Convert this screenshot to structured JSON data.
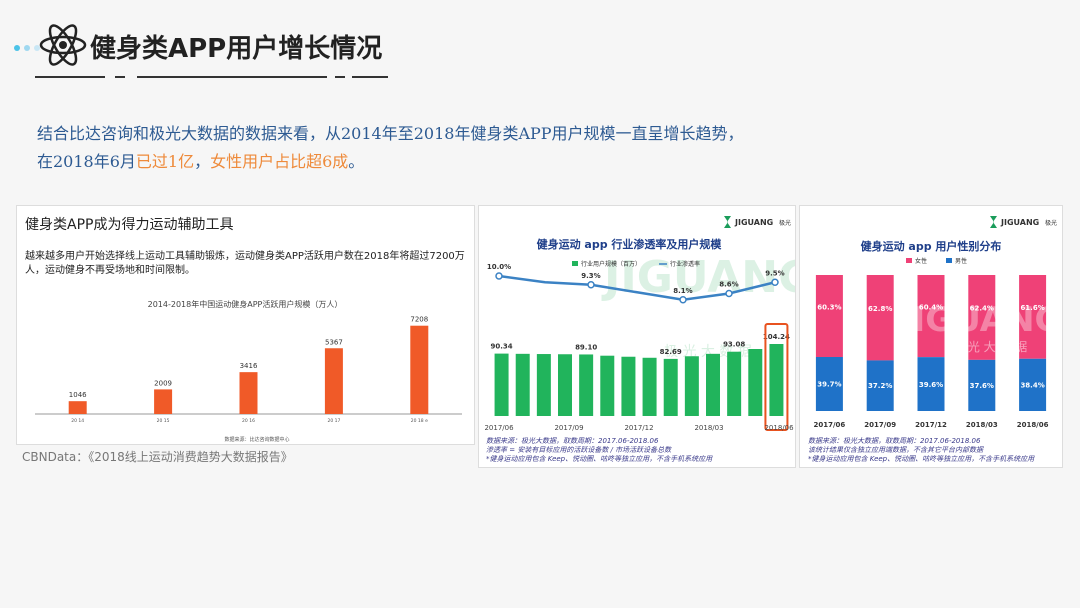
{
  "header": {
    "title": "健身类APP用户增长情况",
    "dot_colors": [
      "#4bc3e8",
      "#9fd8f0",
      "#c9e7f5"
    ]
  },
  "intro": {
    "line1": "结合比达咨询和极光大数据的数据来看，从2014年至2018年健身类APP用户规模一直呈增长趋势，",
    "line2_prefix": "在2018年6月",
    "line2_highlight1": "已过1亿",
    "line2_mid": "，",
    "line2_highlight2": "女性用户占比超6成",
    "line2_suffix": "。"
  },
  "source_caption": "CBNData：《2018线上运动消费趋势大数据报告》",
  "card1": {
    "title": "健身类APP成为得力运动辅助工具",
    "description": "越来越多用户开始选择线上运动工具辅助锻炼，运动健身类APP活跃用户数在2018年将超过7200万人，运动健身不再受场地和时间限制。",
    "footer": "数据来源：比达咨询数据中心"
  },
  "card2": {
    "brand": "JIGUANG",
    "brand_cn": "极光",
    "watermark": "JIGUANG",
    "watermark_cn": "极 光 大 数 据",
    "notes": [
      "数据来源：极光大数据，取数周期：2017.06-2018.06",
      "渗透率 = 安装有目标应用的活跃设备数 / 市场活跃设备总数",
      "*健身运动应用包含 Keep、悦动圈、咕咚等独立应用，不含手机系统应用"
    ]
  },
  "card3": {
    "brand": "JIGUANG",
    "brand_cn": "极光",
    "watermark": "JIGUANG",
    "watermark_cn": "极 光 大 数 据",
    "notes": [
      "数据来源：极光大数据，取数周期：2017.06-2018.06",
      "该统计结果仅含独立应用端数据，不含其它平台内部数据",
      "*健身运动应用包含 Keep、悦动圈、咕咚等独立应用，不含手机系统应用"
    ]
  },
  "chart_data": [
    {
      "type": "bar",
      "title": "2014-2018年中国运动健身APP活跃用户规模（万人）",
      "categories": [
        "20 14",
        "20 15",
        "20 16",
        "20 17",
        "20 18 e"
      ],
      "values": [
        1046,
        2009,
        3416,
        5367,
        7208
      ],
      "ylim": [
        0,
        8000
      ],
      "color": "#f05a28",
      "grid": false
    },
    {
      "type": "bar",
      "title": "健身运动 app 行业渗透率及用户规模",
      "legend_position": "top",
      "x_tick_labels": [
        "2017/06",
        "2017/09",
        "2017/12",
        "2018/03",
        "2018/06"
      ],
      "series": [
        {
          "name": "行业用户规模（百万）",
          "type": "bar",
          "color": "#21b45c",
          "values": [
            90.34,
            90.0,
            89.7,
            89.4,
            89.1,
            87.3,
            85.8,
            84.3,
            82.69,
            86.5,
            90.0,
            93.08,
            97.0,
            104.24
          ],
          "labeled_indices": [
            0,
            4,
            8,
            11,
            13
          ]
        },
        {
          "name": "行业渗透率",
          "type": "line",
          "color": "#3b82c4",
          "unit": "%",
          "values": [
            10.0,
            9.5,
            9.3,
            8.7,
            8.1,
            8.6,
            9.5
          ],
          "labeled_indices": [
            0,
            2,
            4,
            5,
            6
          ]
        }
      ],
      "highlight_last_bar": true,
      "highlight_color": "#e8521f"
    },
    {
      "type": "bar",
      "stacked": true,
      "percent": true,
      "title": "健身运动 app 用户性别分布",
      "legend_position": "top",
      "categories": [
        "2017/06",
        "2017/09",
        "2017/12",
        "2018/03",
        "2018/06"
      ],
      "series": [
        {
          "name": "女性",
          "color": "#ef4177",
          "values": [
            60.3,
            62.8,
            60.4,
            62.4,
            61.6
          ]
        },
        {
          "name": "男性",
          "color": "#1f72c8",
          "values": [
            39.7,
            37.2,
            39.6,
            37.6,
            38.4
          ]
        }
      ]
    }
  ]
}
